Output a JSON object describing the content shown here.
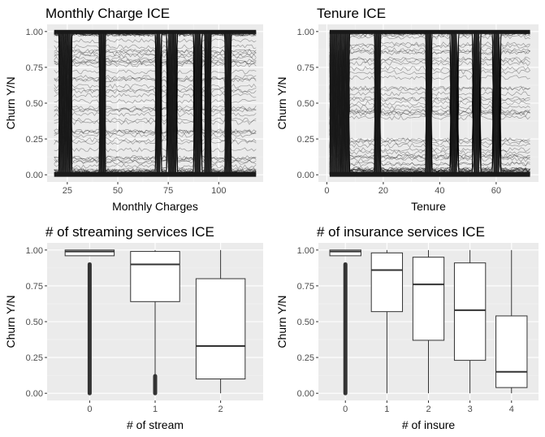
{
  "chart_data": [
    {
      "type": "line",
      "subtype": "ice",
      "title": "Monthly Charge ICE",
      "xlabel": "Monthly Charges",
      "ylabel": "Churn Y/N",
      "xlim": [
        15,
        122
      ],
      "ylim": [
        -0.05,
        1.05
      ],
      "xticks": [
        25,
        50,
        75,
        100
      ],
      "yticks": [
        0.0,
        0.25,
        0.5,
        0.75,
        1.0
      ],
      "ytick_labels": [
        "0.00",
        "0.25",
        "0.50",
        "0.75",
        "1.00"
      ],
      "x_range": [
        18.5,
        118.5
      ],
      "dense_drop_regions": [
        [
          21,
          27
        ],
        [
          41,
          44
        ],
        [
          69,
          71
        ],
        [
          75,
          79
        ],
        [
          88,
          91
        ],
        [
          93,
          96
        ],
        [
          103,
          106
        ]
      ],
      "grid": true,
      "line_color": "#000000",
      "panel_bg": "#ebebeb"
    },
    {
      "type": "line",
      "subtype": "ice",
      "title": "Tenure ICE",
      "xlabel": "Tenure",
      "ylabel": "Churn Y/N",
      "xlim": [
        -3,
        75
      ],
      "ylim": [
        -0.05,
        1.05
      ],
      "xticks": [
        0,
        20,
        40,
        60
      ],
      "yticks": [
        0.0,
        0.25,
        0.5,
        0.75,
        1.0
      ],
      "ytick_labels": [
        "0.00",
        "0.25",
        "0.50",
        "0.75",
        "1.00"
      ],
      "x_range": [
        1,
        72
      ],
      "dense_drop_regions": [
        [
          1,
          8
        ],
        [
          17,
          19
        ],
        [
          35,
          37
        ],
        [
          44,
          46
        ],
        [
          52,
          54
        ],
        [
          59,
          61
        ]
      ],
      "grid": true,
      "line_color": "#000000",
      "panel_bg": "#ebebeb"
    },
    {
      "type": "box",
      "title": "# of streaming services ICE",
      "xlabel": "# of stream",
      "ylabel": "Churn Y/N",
      "categories": [
        "0",
        "1",
        "2"
      ],
      "ylim": [
        -0.05,
        1.05
      ],
      "yticks": [
        0.0,
        0.25,
        0.5,
        0.75,
        1.0
      ],
      "ytick_labels": [
        "0.00",
        "0.25",
        "0.50",
        "0.75",
        "1.00"
      ],
      "boxes": [
        {
          "category": "0",
          "whisker_low": 0.96,
          "q1": 0.96,
          "median": 0.99,
          "q3": 1.0,
          "whisker_high": 1.0,
          "outliers_range": [
            0.0,
            0.9
          ]
        },
        {
          "category": "1",
          "whisker_low": 0.12,
          "q1": 0.64,
          "median": 0.9,
          "q3": 0.99,
          "whisker_high": 1.0,
          "outliers_range": [
            0.0,
            0.12
          ]
        },
        {
          "category": "2",
          "whisker_low": 0.0,
          "q1": 0.1,
          "median": 0.33,
          "q3": 0.8,
          "whisker_high": 1.0
        }
      ],
      "grid": true,
      "panel_bg": "#ebebeb"
    },
    {
      "type": "box",
      "title": "# of insurance services ICE",
      "xlabel": "# of insure",
      "ylabel": "Churn Y/N",
      "categories": [
        "0",
        "1",
        "2",
        "3",
        "4"
      ],
      "ylim": [
        -0.05,
        1.05
      ],
      "yticks": [
        0.0,
        0.25,
        0.5,
        0.75,
        1.0
      ],
      "ytick_labels": [
        "0.00",
        "0.25",
        "0.50",
        "0.75",
        "1.00"
      ],
      "boxes": [
        {
          "category": "0",
          "whisker_low": 0.96,
          "q1": 0.96,
          "median": 0.99,
          "q3": 1.0,
          "whisker_high": 1.0,
          "outliers_range": [
            0.0,
            0.9
          ]
        },
        {
          "category": "1",
          "whisker_low": 0.0,
          "q1": 0.57,
          "median": 0.86,
          "q3": 0.98,
          "whisker_high": 1.0
        },
        {
          "category": "2",
          "whisker_low": 0.0,
          "q1": 0.37,
          "median": 0.76,
          "q3": 0.95,
          "whisker_high": 1.0
        },
        {
          "category": "3",
          "whisker_low": 0.0,
          "q1": 0.23,
          "median": 0.58,
          "q3": 0.91,
          "whisker_high": 1.0
        },
        {
          "category": "4",
          "whisker_low": 0.0,
          "q1": 0.04,
          "median": 0.15,
          "q3": 0.54,
          "whisker_high": 1.0
        }
      ],
      "grid": true,
      "panel_bg": "#ebebeb"
    }
  ]
}
